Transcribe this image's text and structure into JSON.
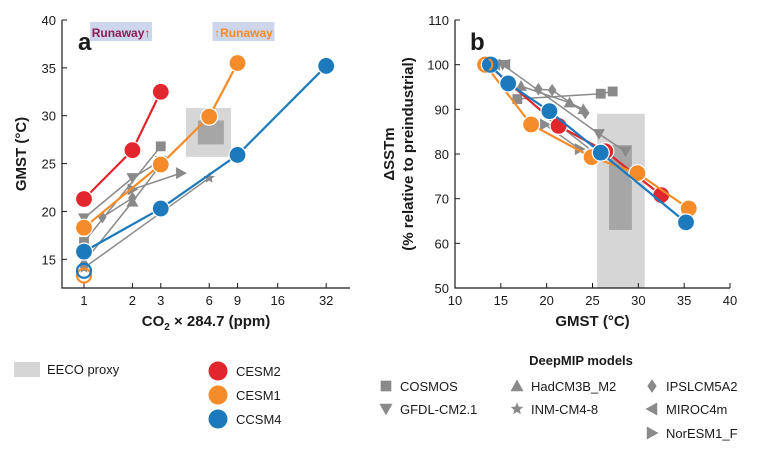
{
  "colors": {
    "CESM2": "#e1262d",
    "CESM1": "#f68b29",
    "CCSM4": "#1c79bc",
    "gray_marker": "#8a8a8a",
    "proxy_outer": "#d6d6d6",
    "proxy_inner": "#a6a6a6",
    "runaway_bg": "#cdd6ec"
  },
  "chart_data": [
    {
      "panel": "a",
      "type": "line",
      "xlabel_prefix": "CO",
      "xlabel_sub": "2",
      "xlabel_suffix": " × 284.7 (ppm)",
      "ylabel": "GMST (°C)",
      "x_scale": "log2",
      "xlim": [
        0.73,
        45
      ],
      "ylim": [
        12,
        40
      ],
      "xticks": [
        1,
        2,
        3,
        6,
        9,
        16,
        32
      ],
      "xtick_labels": [
        "1",
        "2",
        "3",
        "6",
        "9",
        "16",
        "32"
      ],
      "yticks": [
        15,
        20,
        25,
        30,
        35,
        40
      ],
      "ytick_labels": [
        "15",
        "20",
        "25",
        "30",
        "35",
        "40"
      ],
      "runaway_labels": [
        {
          "text": "Runaway",
          "arrow": "↑",
          "model": "CESM2",
          "arrow_side": "after",
          "x": 1.7
        },
        {
          "text": "Runaway",
          "arrow": "↑",
          "model": "CESM1",
          "arrow_side": "before",
          "x": 9.8
        }
      ],
      "proxy": {
        "outer": {
          "x": [
            4.3,
            8.2
          ],
          "y": [
            25.7,
            30.8
          ]
        },
        "inner": {
          "x": [
            5.1,
            7.4
          ],
          "y": [
            27.0,
            29.5
          ]
        }
      },
      "series": [
        {
          "name": "CESM2",
          "x": [
            1,
            2,
            3
          ],
          "y": [
            21.3,
            26.4,
            32.5
          ]
        },
        {
          "name": "CESM1",
          "x": [
            1,
            3,
            6,
            9
          ],
          "y": [
            18.3,
            24.9,
            29.9,
            35.5
          ]
        },
        {
          "name": "CCSM4",
          "x": [
            1,
            3,
            9,
            32
          ],
          "y": [
            15.8,
            20.3,
            25.9,
            35.2
          ]
        }
      ],
      "preindustrial": [
        {
          "name": "CESM1",
          "x": 1,
          "y": 13.3
        },
        {
          "name": "CCSM4",
          "x": 1,
          "y": 13.8
        }
      ],
      "deepmip": [
        {
          "model": "COSMOS",
          "marker": "square",
          "x": [
            1,
            3
          ],
          "y": [
            16.8,
            26.8
          ]
        },
        {
          "model": "GFDL-CM2.1",
          "marker": "tri-down",
          "x": [
            1,
            2,
            3
          ],
          "y": [
            19.3,
            23.5,
            25.3
          ]
        },
        {
          "model": "HadCM3B_M2",
          "marker": "tri-up",
          "x": [
            1,
            2,
            3
          ],
          "y": [
            14.7,
            21.0,
            24.9
          ]
        },
        {
          "model": "INM-CM4-8",
          "marker": "star",
          "x": [
            1,
            6
          ],
          "y": [
            14.1,
            23.5
          ]
        },
        {
          "model": "IPSLCM5A2",
          "marker": "diamond",
          "x": [
            1.3,
            2
          ],
          "y": [
            19.4,
            21.4
          ]
        },
        {
          "model": "NorESM1_F",
          "marker": "tri-right",
          "x": [
            2,
            4
          ],
          "y": [
            22.3,
            24.0
          ]
        }
      ]
    },
    {
      "panel": "b",
      "type": "line",
      "xlabel": "GMST (°C)",
      "ylabel_line1": "ΔSSTm",
      "ylabel_line2": "(% relative to preindustrial)",
      "xlim": [
        10,
        40
      ],
      "ylim": [
        50,
        110
      ],
      "xticks": [
        10,
        15,
        20,
        25,
        30,
        35,
        40
      ],
      "xtick_labels": [
        "10",
        "15",
        "20",
        "25",
        "30",
        "35",
        "40"
      ],
      "yticks": [
        50,
        60,
        70,
        80,
        90,
        100,
        110
      ],
      "ytick_labels": [
        "50",
        "60",
        "70",
        "80",
        "90",
        "100",
        "110"
      ],
      "proxy": {
        "outer": {
          "x": [
            25.5,
            30.7
          ],
          "y": [
            50,
            89
          ]
        },
        "inner": {
          "x": [
            26.8,
            29.3
          ],
          "y": [
            63,
            82
          ]
        }
      },
      "series": [
        {
          "name": "CESM2",
          "x": [
            13.6,
            21.3,
            26.4,
            32.5
          ],
          "y": [
            100,
            86.3,
            80.6,
            70.8
          ]
        },
        {
          "name": "CESM1",
          "x": [
            13.3,
            18.3,
            24.9,
            29.9,
            35.5
          ],
          "y": [
            100,
            86.6,
            79.3,
            75.7,
            67.8
          ]
        },
        {
          "name": "CCSM4",
          "x": [
            13.8,
            15.8,
            20.3,
            25.9,
            35.2
          ],
          "y": [
            100,
            95.8,
            89.6,
            80.3,
            64.7
          ]
        }
      ],
      "preindustrial": [
        {
          "name": "CESM1",
          "x": 13.3,
          "y": 100
        },
        {
          "name": "CCSM4",
          "x": 13.9,
          "y": 100
        }
      ],
      "deepmip": [
        {
          "model": "COSMOS",
          "marker": "square",
          "x": [
            16.8,
            25.9,
            27.2
          ],
          "y": [
            92.3,
            93.5,
            94.0
          ]
        },
        {
          "model": "GFDL-CM2.1",
          "marker": "tri-down",
          "x": [
            15.2,
            25.7,
            28.6
          ],
          "y": [
            100,
            84.5,
            80.6
          ]
        },
        {
          "model": "HadCM3B_M2",
          "marker": "tri-up",
          "x": [
            17.2,
            22.5,
            24.0
          ],
          "y": [
            95.2,
            91.5,
            90.0
          ]
        },
        {
          "model": "INM-CM4-8",
          "marker": "star",
          "x": [
            20.7,
            25.2
          ],
          "y": [
            87.5,
            80.3
          ]
        },
        {
          "model": "IPSLCM5A2",
          "marker": "diamond",
          "x": [
            19.1,
            20.6,
            24.2
          ],
          "y": [
            94.5,
            94.3,
            89.2
          ]
        },
        {
          "model": "MIROC4m",
          "marker": "tri-left",
          "x": [
            14.4,
            15.5
          ],
          "y": [
            100,
            100
          ]
        },
        {
          "model": "NorESM1_F",
          "marker": "tri-right",
          "x": [
            19.8,
            23.6
          ],
          "y": [
            86.6,
            81.1
          ]
        }
      ]
    }
  ],
  "legend": {
    "proxy_label": "EECO proxy",
    "models": [
      "CESM2",
      "CESM1",
      "CCSM4"
    ],
    "deepmip_title": "DeepMIP models",
    "deepmip": [
      {
        "model": "COSMOS",
        "marker": "square"
      },
      {
        "model": "HadCM3B_M2",
        "marker": "tri-up"
      },
      {
        "model": "IPSLCM5A2",
        "marker": "diamond"
      },
      {
        "model": "GFDL-CM2.1",
        "marker": "tri-down"
      },
      {
        "model": "INM-CM4-8",
        "marker": "star"
      },
      {
        "model": "MIROC4m",
        "marker": "tri-left"
      },
      {
        "model": "NorESM1_F",
        "marker": "tri-right"
      }
    ]
  }
}
